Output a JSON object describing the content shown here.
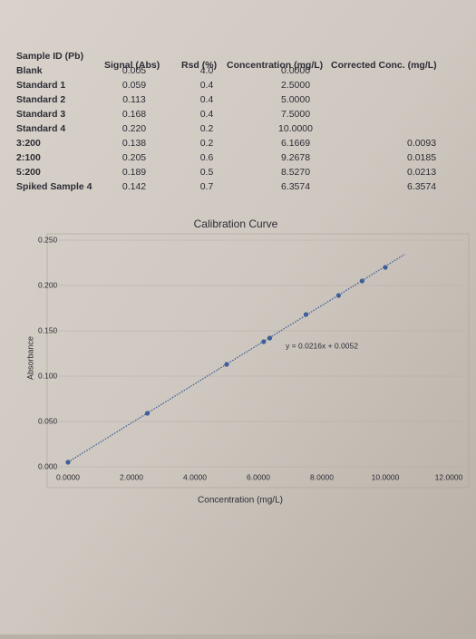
{
  "table": {
    "columns": [
      "Sample ID (Pb)",
      "Signal (Abs)",
      "Rsd (%)",
      "Concentration (mg/L)",
      "Corrected Conc. (mg/L)"
    ],
    "rows": [
      [
        "Blank",
        "0.005",
        "4.0",
        "0.0000"
      ],
      [
        "Standard 1",
        "0.059",
        "0.4",
        "2.5000"
      ],
      [
        "Standard 2",
        "0.113",
        "0.4",
        "5.0000"
      ],
      [
        "Standard 3",
        "0.168",
        "0.4",
        "7.5000"
      ],
      [
        "Standard 4",
        "0.220",
        "0.2",
        "10.0000"
      ],
      [
        "3:200",
        "0.138",
        "0.2",
        "6.1669",
        "0.0093"
      ],
      [
        "2:100",
        "0.205",
        "0.6",
        "9.2678",
        "0.0185"
      ],
      [
        "5:200",
        "0.189",
        "0.5",
        "8.5270",
        "0.0213"
      ],
      [
        "Spiked Sample 4",
        "0.142",
        "0.7",
        "6.3574",
        "6.3574"
      ]
    ]
  },
  "chart_data": {
    "type": "scatter",
    "title": "Calibration Curve",
    "x_label": "Concentration (mg/L)",
    "y_label": "Absorbance",
    "x": [
      0,
      2.5,
      5,
      7.5,
      10,
      6.1669,
      9.2678,
      8.527,
      6.3574
    ],
    "values": [
      0.005,
      0.059,
      0.113,
      0.168,
      0.22,
      0.138,
      0.205,
      0.189,
      0.142
    ],
    "color": "#3f5f9a",
    "trendline": {
      "slope": 0.0216,
      "intercept": 0.0052,
      "label": "y = 0.0216x + 0.0052"
    },
    "xlim": [
      0,
      12
    ],
    "ylim": [
      0,
      0.25
    ],
    "xticks": [
      {
        "value": 0,
        "label": "0.0000"
      },
      {
        "value": 2,
        "label": "2.0000"
      },
      {
        "value": 4,
        "label": "4.0000"
      },
      {
        "value": 6,
        "label": "6.0000"
      },
      {
        "value": 8,
        "label": "8.0000"
      },
      {
        "value": 10,
        "label": "10.0000"
      },
      {
        "value": 12,
        "label": "12.0000"
      }
    ],
    "yticks": [
      {
        "value": 0,
        "label": "0.000"
      },
      {
        "value": 0.05,
        "label": "0.050"
      },
      {
        "value": 0.1,
        "label": "0.100"
      },
      {
        "value": 0.15,
        "label": "0.150"
      },
      {
        "value": 0.2,
        "label": "0.200"
      },
      {
        "value": 0.25,
        "label": "0.250"
      }
    ],
    "grid": true
  }
}
